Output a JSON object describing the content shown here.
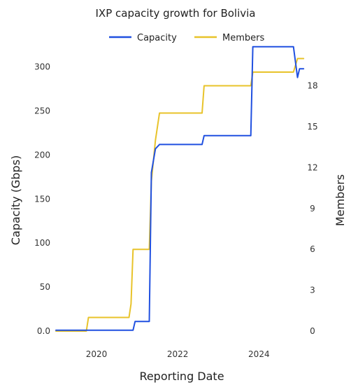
{
  "chart_data": {
    "type": "line",
    "title": "IXP capacity growth for Bolivia",
    "xlabel": "Reporting Date",
    "ylabel_left": "Capacity (Gbps)",
    "ylabel_right": "Members",
    "xlim": [
      2019.0,
      2025.2
    ],
    "ylim_left": [
      0,
      322
    ],
    "ylim_right": [
      0,
      20.8
    ],
    "x_ticks": [
      {
        "value": 2020,
        "label": "2020"
      },
      {
        "value": 2022,
        "label": "2022"
      },
      {
        "value": 2024,
        "label": "2024"
      }
    ],
    "y_left_ticks": [
      {
        "value": 0,
        "label": "0.0"
      },
      {
        "value": 50,
        "label": "50"
      },
      {
        "value": 100,
        "label": "100"
      },
      {
        "value": 150,
        "label": "150"
      },
      {
        "value": 200,
        "label": "200"
      },
      {
        "value": 250,
        "label": "250"
      },
      {
        "value": 300,
        "label": "300"
      }
    ],
    "y_right_ticks": [
      {
        "value": 0,
        "label": "0"
      },
      {
        "value": 3,
        "label": "3"
      },
      {
        "value": 6,
        "label": "6"
      },
      {
        "value": 9,
        "label": "9"
      },
      {
        "value": 12,
        "label": "12"
      },
      {
        "value": 15,
        "label": "15"
      },
      {
        "value": 18,
        "label": "18"
      }
    ],
    "legend_position": "top",
    "grid": false,
    "series": [
      {
        "name": "Capacity",
        "axis": "left",
        "color": "#2050e0",
        "points": [
          [
            2019.0,
            1
          ],
          [
            2019.75,
            1
          ],
          [
            2020.9,
            1
          ],
          [
            2020.95,
            11
          ],
          [
            2021.3,
            11
          ],
          [
            2021.35,
            180
          ],
          [
            2021.45,
            207
          ],
          [
            2021.55,
            212
          ],
          [
            2022.6,
            212
          ],
          [
            2022.65,
            222
          ],
          [
            2023.8,
            222
          ],
          [
            2023.85,
            323
          ],
          [
            2024.85,
            323
          ],
          [
            2024.95,
            288
          ],
          [
            2025.0,
            298
          ],
          [
            2025.1,
            298
          ]
        ]
      },
      {
        "name": "Members",
        "axis": "right",
        "color": "#e8c32a",
        "points": [
          [
            2019.0,
            0
          ],
          [
            2019.75,
            0
          ],
          [
            2019.8,
            1
          ],
          [
            2020.8,
            1
          ],
          [
            2020.85,
            2
          ],
          [
            2020.9,
            6
          ],
          [
            2021.3,
            6
          ],
          [
            2021.35,
            11
          ],
          [
            2021.45,
            14
          ],
          [
            2021.55,
            16
          ],
          [
            2022.6,
            16
          ],
          [
            2022.65,
            18
          ],
          [
            2023.8,
            18
          ],
          [
            2023.85,
            19
          ],
          [
            2024.85,
            19
          ],
          [
            2024.95,
            20
          ],
          [
            2025.1,
            20
          ]
        ]
      }
    ]
  }
}
